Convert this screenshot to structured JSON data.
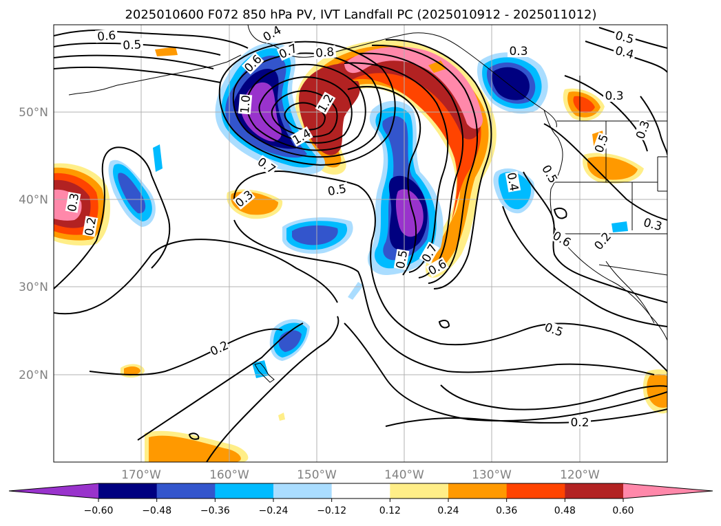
{
  "title": "2025010600 F072 850 hPa PV, IVT Landfall PC (2025010912 - 2025011012)",
  "map": {
    "lat_ticks": [
      "50°N",
      "40°N",
      "30°N",
      "20°N"
    ],
    "lon_ticks": [
      "170°W",
      "160°W",
      "150°W",
      "140°W",
      "130°W",
      "120°W"
    ],
    "gridlines": true,
    "extent": {
      "lon_min": -180,
      "lon_max": -110,
      "lat_min": 10,
      "lat_max": 60
    }
  },
  "colorbar": {
    "ticks": [
      "−0.60",
      "−0.48",
      "−0.36",
      "−0.24",
      "−0.12",
      "0.12",
      "0.24",
      "0.36",
      "0.48",
      "0.60"
    ],
    "colors": [
      "#9933cc",
      "#000080",
      "#3355cc",
      "#00bbff",
      "#aaddff",
      "#ffffff",
      "#ffee88",
      "#ff9900",
      "#ff4400",
      "#b22222",
      "#ff88aa"
    ],
    "extend": "both"
  },
  "contour_labels": [
    "0.6",
    "0.5",
    "0.4",
    "0.7",
    "0.8",
    "0.6",
    "1.0",
    "1.2",
    "1.4",
    "0.7",
    "0.5",
    "0.3",
    "0.5",
    "0.4",
    "0.3",
    "0.3",
    "0.5",
    "0.4",
    "0.5",
    "0.3",
    "0.6",
    "0.2",
    "0.3",
    "0.2",
    "0.3",
    "0.5",
    "0.7",
    "0.6",
    "0.2",
    "0.5",
    "0.2"
  ],
  "colors": {
    "purple": "#9933cc",
    "navy": "#000080",
    "blue": "#3355cc",
    "cyan": "#00bbff",
    "lightblue": "#aaddff",
    "yellow": "#ffee88",
    "orange": "#ff9900",
    "redorange": "#ff4400",
    "darkred": "#b22222",
    "pink": "#ff88aa"
  }
}
